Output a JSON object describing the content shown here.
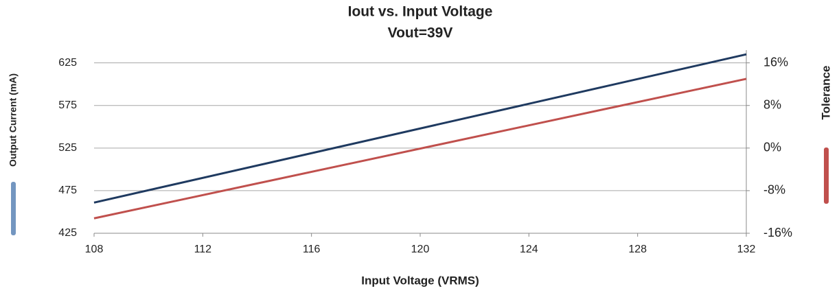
{
  "chart_data": {
    "type": "line",
    "title": "Iout vs. Input Voltage",
    "subtitle": "Vout=39V",
    "xlabel": "Input Voltage (VRMS)",
    "ylabel": "Output Current (mA)",
    "y2label": "Tolerance",
    "x": [
      108,
      132
    ],
    "series": [
      {
        "color": "#1f3a60",
        "values": [
          461,
          635
        ]
      },
      {
        "color": "#c0504d",
        "values": [
          -13.2,
          13
        ],
        "axis": "y2"
      }
    ],
    "xlim": [
      108,
      132
    ],
    "xticks": [
      108,
      112,
      116,
      120,
      124,
      128,
      132
    ],
    "ylim": [
      425,
      640
    ],
    "yticks": [
      425,
      475,
      525,
      575,
      625
    ],
    "y2lim": [
      -16,
      18.4
    ],
    "y2ticks": [
      {
        "value": -16,
        "label": "-16%"
      },
      {
        "value": -8,
        "label": "-8%"
      },
      {
        "value": 0,
        "label": "0%"
      },
      {
        "value": 8,
        "label": "8%"
      },
      {
        "value": 16,
        "label": "16%"
      }
    ],
    "grid": true
  }
}
